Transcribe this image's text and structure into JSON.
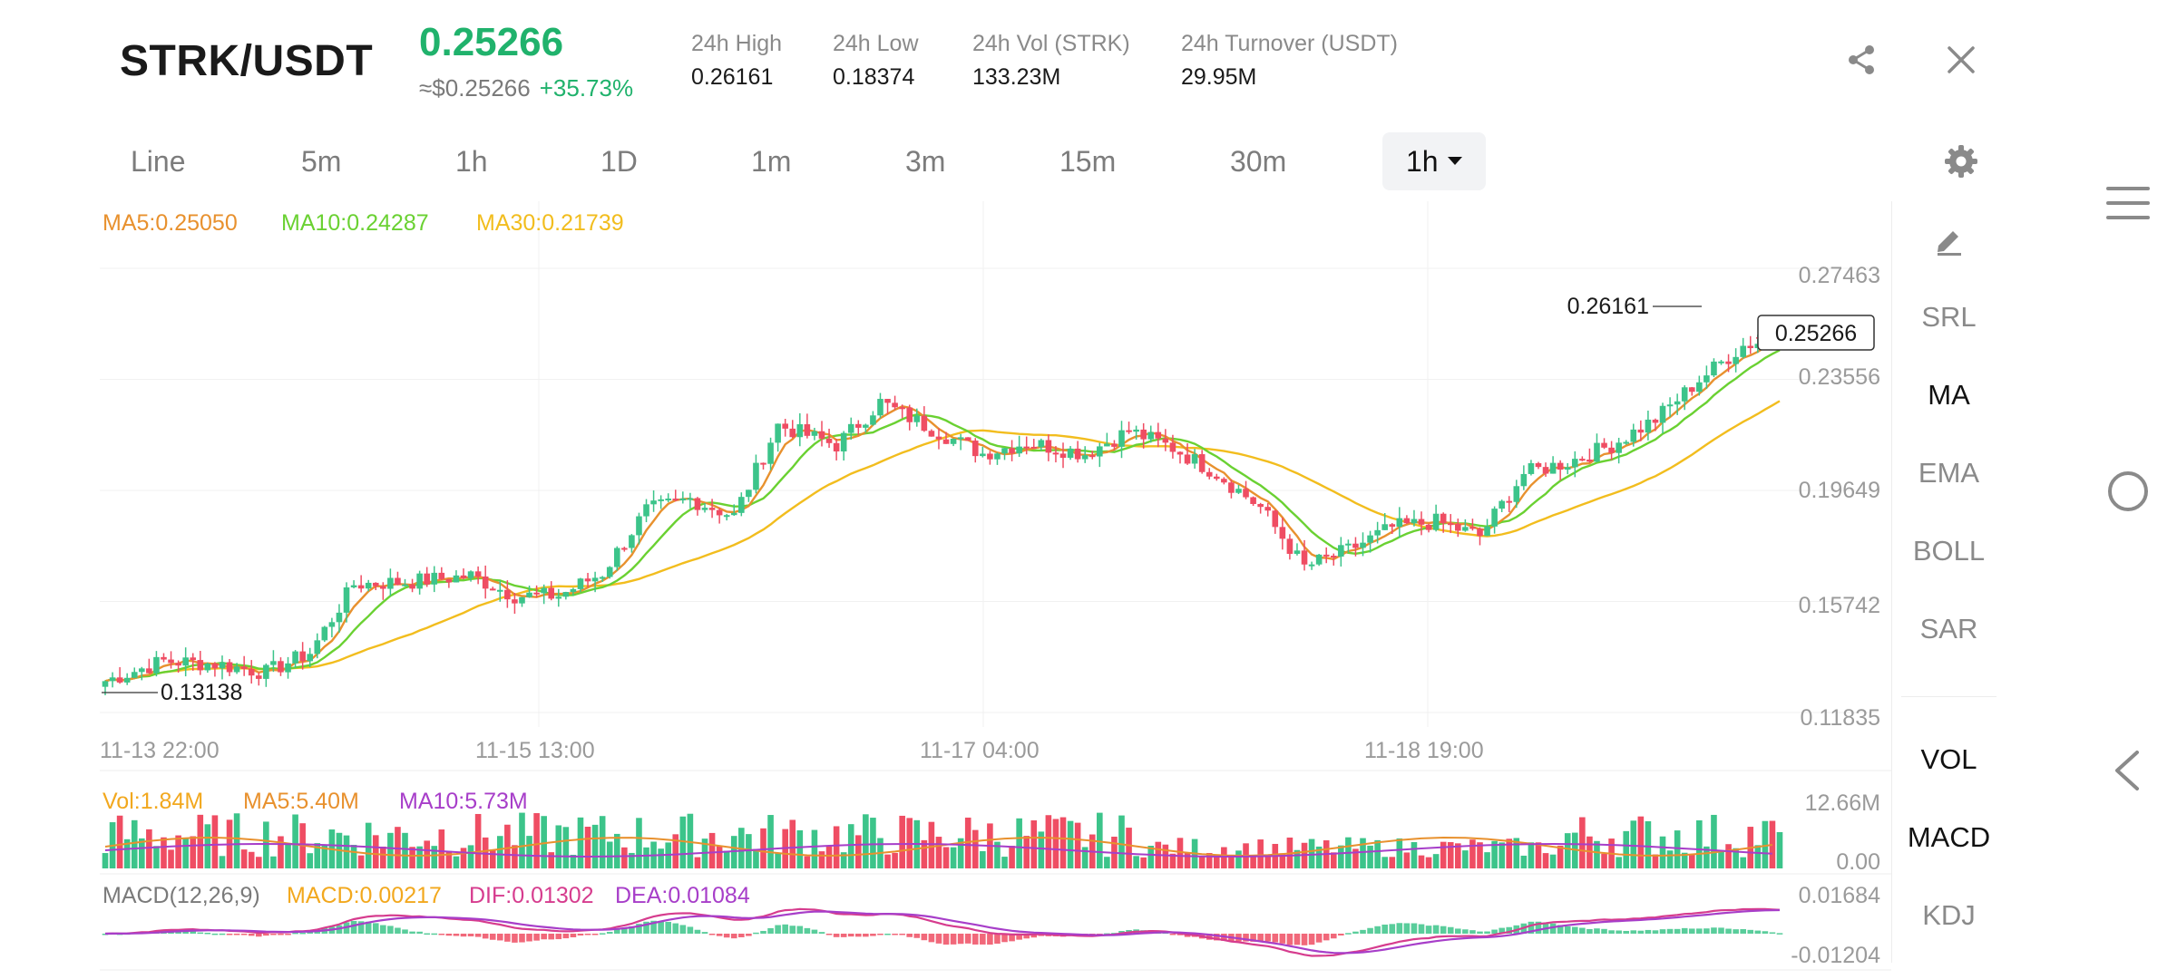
{
  "header": {
    "pair": "STRK/USDT",
    "last_price": "0.25266",
    "usd_price": "≈$0.25266",
    "change_pct": "+35.73%",
    "stats": [
      {
        "label": "24h High",
        "value": "0.26161"
      },
      {
        "label": "24h Low",
        "value": "0.18374"
      },
      {
        "label": "24h Vol (STRK)",
        "value": "133.23M"
      },
      {
        "label": "24h Turnover (USDT)",
        "value": "29.95M"
      }
    ],
    "share_icon": "share-icon",
    "close_icon": "close-icon"
  },
  "timeframes": {
    "items": [
      "Line",
      "5m",
      "1h",
      "1D",
      "1m",
      "3m",
      "15m",
      "30m"
    ],
    "selected": "1h",
    "settings_icon": "gear-icon"
  },
  "tools": {
    "draw_icon": "pencil-icon",
    "items": [
      "SRL",
      "MA",
      "EMA",
      "BOLL",
      "SAR"
    ],
    "active": "MA",
    "sub_items": [
      "VOL",
      "MACD",
      "KDJ"
    ],
    "sub_active": [
      "VOL",
      "MACD"
    ]
  },
  "colors": {
    "up": "#3cc48a",
    "down": "#ef4d63",
    "ma5": "#e8912e",
    "ma10": "#6ad132",
    "ma30": "#f2bd1e",
    "macd_line": "#d63c8e",
    "dea_line": "#a73ec9",
    "accent": "#20b26c"
  },
  "chart_data": {
    "type": "candlestick",
    "legend": {
      "ma5": "MA5:0.25050",
      "ma10": "MA10:0.24287",
      "ma30": "MA30:0.21739"
    },
    "y_ticks": [
      "0.27463",
      "0.23556",
      "0.19649",
      "0.15742",
      "0.11835"
    ],
    "y_tick_values": [
      0.27463,
      0.23556,
      0.19649,
      0.15742,
      0.11835
    ],
    "x_ticks": [
      "11-13 22:00",
      "11-15 13:00",
      "11-17 04:00",
      "11-18 19:00"
    ],
    "high_label": "0.26161",
    "low_label": "0.13138",
    "last_price_tag": "0.25266",
    "price_anchors": [
      [
        0,
        0.132
      ],
      [
        8,
        0.139
      ],
      [
        15,
        0.138
      ],
      [
        22,
        0.135
      ],
      [
        28,
        0.142
      ],
      [
        34,
        0.166
      ],
      [
        42,
        0.167
      ],
      [
        50,
        0.169
      ],
      [
        56,
        0.162
      ],
      [
        62,
        0.162
      ],
      [
        68,
        0.17
      ],
      [
        74,
        0.192
      ],
      [
        80,
        0.196
      ],
      [
        86,
        0.19
      ],
      [
        92,
        0.222
      ],
      [
        100,
        0.215
      ],
      [
        106,
        0.23
      ],
      [
        112,
        0.222
      ],
      [
        120,
        0.212
      ],
      [
        126,
        0.216
      ],
      [
        134,
        0.212
      ],
      [
        140,
        0.22
      ],
      [
        146,
        0.214
      ],
      [
        152,
        0.205
      ],
      [
        158,
        0.193
      ],
      [
        164,
        0.172
      ],
      [
        170,
        0.178
      ],
      [
        176,
        0.186
      ],
      [
        182,
        0.188
      ],
      [
        188,
        0.183
      ],
      [
        194,
        0.205
      ],
      [
        200,
        0.209
      ],
      [
        206,
        0.215
      ],
      [
        212,
        0.224
      ],
      [
        218,
        0.238
      ],
      [
        224,
        0.25
      ],
      [
        229,
        0.253
      ]
    ],
    "volume": {
      "legend": {
        "vol": "Vol:1.84M",
        "ma5": "MA5:5.40M",
        "ma10": "MA10:5.73M"
      },
      "y_ticks": [
        "12.66M",
        "0.00"
      ],
      "max": 12.66
    },
    "macd": {
      "legend": {
        "params": "MACD(12,26,9)",
        "macd": "MACD:0.00217",
        "dif": "DIF:0.01302",
        "dea": "DEA:0.01084"
      },
      "y_ticks": [
        "0.01684",
        "-0.01204"
      ],
      "max": 0.01684,
      "min": -0.01204
    }
  }
}
